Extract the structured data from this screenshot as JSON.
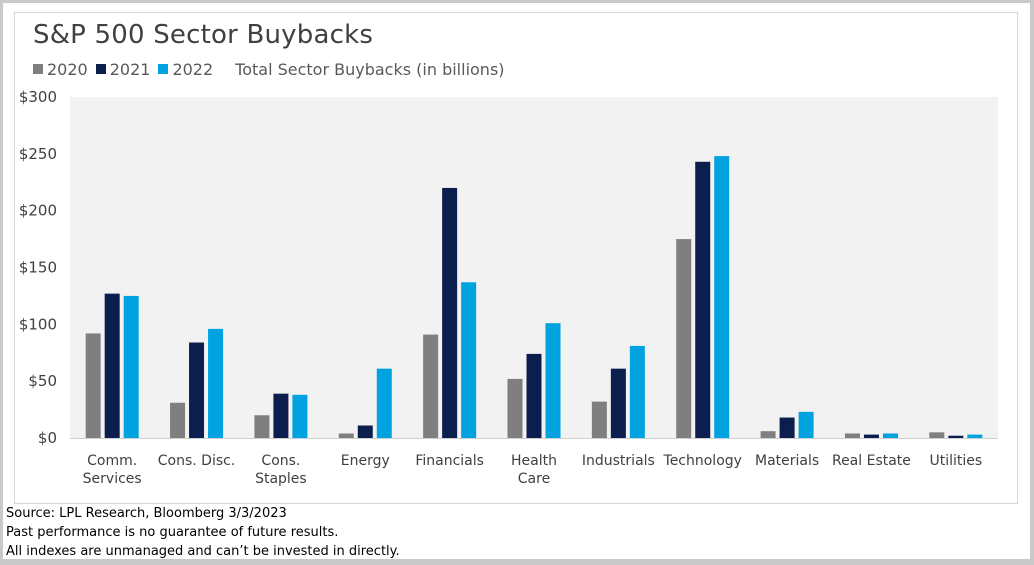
{
  "notes": {
    "source": "Source: LPL Research, Bloomberg 3/3/2023",
    "disclaimer": "Past performance is no guarantee of future results.",
    "indexes": "All indexes are unmanaged and can’t be invested in directly."
  },
  "chart_data": {
    "type": "bar",
    "title": "S&P 500 Sector Buybacks",
    "subtitle": "Total Sector Buybacks (in billions)",
    "categories": [
      "Comm.\nServices",
      "Cons. Disc.",
      "Cons.\nStaples",
      "Energy",
      "Financials",
      "Health\nCare",
      "Industrials",
      "Technology",
      "Materials",
      "Real Estate",
      "Utilities"
    ],
    "series": [
      {
        "name": "2020",
        "color": "#7f7f7f",
        "values": [
          92,
          31,
          20,
          4,
          91,
          52,
          32,
          175,
          6,
          4,
          5
        ]
      },
      {
        "name": "2021",
        "color": "#0b1e4d",
        "values": [
          127,
          84,
          39,
          11,
          220,
          74,
          61,
          243,
          18,
          3,
          2
        ]
      },
      {
        "name": "2022",
        "color": "#00a3e0",
        "values": [
          125,
          96,
          38,
          61,
          137,
          101,
          81,
          248,
          23,
          4,
          3
        ]
      }
    ],
    "ylim": [
      0,
      300
    ],
    "yticks": [
      0,
      50,
      100,
      150,
      200,
      250,
      300
    ],
    "ytick_labels": [
      "$0",
      "$50",
      "$100",
      "$150",
      "$200",
      "$250",
      "$300"
    ],
    "xlabel": "",
    "ylabel": "",
    "plot_background": "#f2f2f2",
    "grid": false,
    "legend_position": "top-left"
  }
}
